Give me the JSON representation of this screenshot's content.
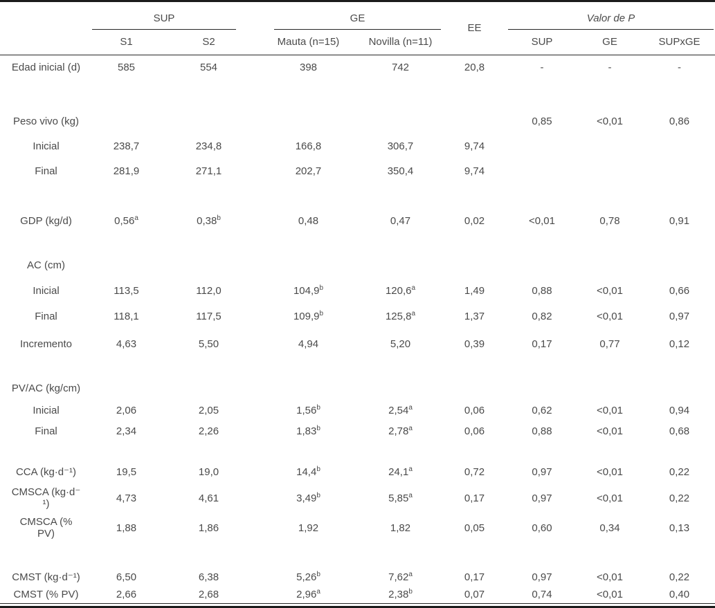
{
  "table": {
    "header": {
      "sup_group": "SUP",
      "ge_group": "GE",
      "ee": "EE",
      "p_group": "Valor de P",
      "col_s1": "S1",
      "col_s2": "S2",
      "col_mauta": "Mauta (n=15)",
      "col_novilla": "Novilla (n=11)",
      "col_p_sup": "SUP",
      "col_p_ge": "GE",
      "col_p_supxge": "SUPxGE"
    },
    "rows": [
      {
        "type": "data",
        "label": "Edad inicial (d)",
        "cells": [
          {
            "v": "585"
          },
          {
            "v": "554"
          },
          {
            "v": "398"
          },
          {
            "v": "742"
          },
          {
            "v": "20,8"
          },
          {
            "v": "-"
          },
          {
            "v": "-"
          },
          {
            "v": "-"
          }
        ]
      },
      {
        "type": "spacer"
      },
      {
        "type": "data",
        "label": "Peso vivo (kg)",
        "cells": [
          {},
          {},
          {},
          {},
          {},
          {
            "v": "0,85"
          },
          {
            "v": "<0,01"
          },
          {
            "v": "0,86"
          }
        ]
      },
      {
        "type": "data",
        "label": "Inicial",
        "cells": [
          {
            "v": "238,7"
          },
          {
            "v": "234,8"
          },
          {
            "v": "166,8"
          },
          {
            "v": "306,7"
          },
          {
            "v": "9,74"
          },
          {},
          {},
          {}
        ]
      },
      {
        "type": "data",
        "label": "Final",
        "cells": [
          {
            "v": "281,9"
          },
          {
            "v": "271,1"
          },
          {
            "v": "202,7"
          },
          {
            "v": "350,4"
          },
          {
            "v": "9,74"
          },
          {},
          {},
          {}
        ]
      },
      {
        "type": "spacer"
      },
      {
        "type": "data",
        "label": "GDP (kg/d)",
        "cells": [
          {
            "v": "0,56",
            "s": "a"
          },
          {
            "v": "0,38",
            "s": "b"
          },
          {
            "v": "0,48"
          },
          {
            "v": "0,47"
          },
          {
            "v": "0,02"
          },
          {
            "v": "<0,01"
          },
          {
            "v": "0,78"
          },
          {
            "v": "0,91"
          }
        ]
      },
      {
        "type": "spacer"
      },
      {
        "type": "data",
        "label": "AC (cm)",
        "cells": [
          {},
          {},
          {},
          {},
          {},
          {},
          {},
          {}
        ]
      },
      {
        "type": "data",
        "label": "Inicial",
        "cells": [
          {
            "v": "113,5"
          },
          {
            "v": "112,0"
          },
          {
            "v": "104,9",
            "s": "b"
          },
          {
            "v": "120,6",
            "s": "a"
          },
          {
            "v": "1,49"
          },
          {
            "v": "0,88"
          },
          {
            "v": "<0,01"
          },
          {
            "v": "0,66"
          }
        ]
      },
      {
        "type": "data",
        "label": "Final",
        "cells": [
          {
            "v": "118,1"
          },
          {
            "v": "117,5"
          },
          {
            "v": "109,9",
            "s": "b"
          },
          {
            "v": "125,8",
            "s": "a"
          },
          {
            "v": "1,37"
          },
          {
            "v": "0,82"
          },
          {
            "v": "<0,01"
          },
          {
            "v": "0,97"
          }
        ]
      },
      {
        "type": "data",
        "label": "Incremento",
        "cells": [
          {
            "v": "4,63"
          },
          {
            "v": "5,50"
          },
          {
            "v": "4,94"
          },
          {
            "v": "5,20"
          },
          {
            "v": "0,39"
          },
          {
            "v": "0,17"
          },
          {
            "v": "0,77"
          },
          {
            "v": "0,12"
          }
        ]
      },
      {
        "type": "spacer"
      },
      {
        "type": "data",
        "label": "PV/AC (kg/cm)",
        "cells": [
          {},
          {},
          {},
          {},
          {},
          {},
          {},
          {}
        ]
      },
      {
        "type": "data",
        "label": "Inicial",
        "cells": [
          {
            "v": "2,06"
          },
          {
            "v": "2,05"
          },
          {
            "v": "1,56",
            "s": "b"
          },
          {
            "v": "2,54",
            "s": "a"
          },
          {
            "v": "0,06"
          },
          {
            "v": "0,62"
          },
          {
            "v": "<0,01"
          },
          {
            "v": "0,94"
          }
        ]
      },
      {
        "type": "data",
        "label": "Final",
        "cells": [
          {
            "v": "2,34"
          },
          {
            "v": "2,26"
          },
          {
            "v": "1,83",
            "s": "b"
          },
          {
            "v": "2,78",
            "s": "a"
          },
          {
            "v": "0,06"
          },
          {
            "v": "0,88"
          },
          {
            "v": "<0,01"
          },
          {
            "v": "0,68"
          }
        ]
      },
      {
        "type": "spacer"
      },
      {
        "type": "data",
        "label": "CCA (kg·d⁻¹)",
        "cells": [
          {
            "v": "19,5"
          },
          {
            "v": "19,0"
          },
          {
            "v": "14,4",
            "s": "b"
          },
          {
            "v": "24,1",
            "s": "a"
          },
          {
            "v": "0,72"
          },
          {
            "v": "0,97"
          },
          {
            "v": "<0,01"
          },
          {
            "v": "0,22"
          }
        ]
      },
      {
        "type": "data",
        "label": "CMSCA (kg·d⁻\n¹)",
        "cells": [
          {
            "v": "4,73"
          },
          {
            "v": "4,61"
          },
          {
            "v": "3,49",
            "s": "b"
          },
          {
            "v": "5,85",
            "s": "a"
          },
          {
            "v": "0,17"
          },
          {
            "v": "0,97"
          },
          {
            "v": "<0,01"
          },
          {
            "v": "0,22"
          }
        ]
      },
      {
        "type": "data",
        "label": "CMSCA (%\nPV)",
        "cells": [
          {
            "v": "1,88"
          },
          {
            "v": "1,86"
          },
          {
            "v": "1,92"
          },
          {
            "v": "1,82"
          },
          {
            "v": "0,05"
          },
          {
            "v": "0,60"
          },
          {
            "v": "0,34"
          },
          {
            "v": "0,13"
          }
        ]
      },
      {
        "type": "spacer"
      },
      {
        "type": "data",
        "label": "CMST (kg·d⁻¹)",
        "cells": [
          {
            "v": "6,50"
          },
          {
            "v": "6,38"
          },
          {
            "v": "5,26",
            "s": "b"
          },
          {
            "v": "7,62",
            "s": "a"
          },
          {
            "v": "0,17"
          },
          {
            "v": "0,97"
          },
          {
            "v": "<0,01"
          },
          {
            "v": "0,22"
          }
        ]
      },
      {
        "type": "data",
        "label": "CMST (% PV)",
        "cells": [
          {
            "v": "2,66"
          },
          {
            "v": "2,68"
          },
          {
            "v": "2,96",
            "s": "a"
          },
          {
            "v": "2,38",
            "s": "b"
          },
          {
            "v": "0,07"
          },
          {
            "v": "0,74"
          },
          {
            "v": "<0,01"
          },
          {
            "v": "0,40"
          }
        ]
      }
    ]
  }
}
